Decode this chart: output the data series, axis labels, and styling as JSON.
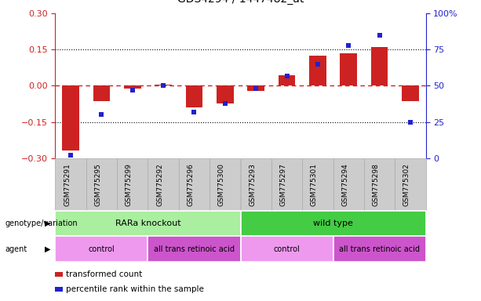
{
  "samples": [
    "GSM775291",
    "GSM775295",
    "GSM775299",
    "GSM775292",
    "GSM775296",
    "GSM775300",
    "GSM775293",
    "GSM775297",
    "GSM775301",
    "GSM775294",
    "GSM775298",
    "GSM775302"
  ],
  "bar_values": [
    -0.27,
    -0.065,
    -0.01,
    0.005,
    -0.09,
    -0.075,
    -0.02,
    0.045,
    0.125,
    0.135,
    0.16,
    -0.065
  ],
  "dot_values": [
    2,
    30,
    47,
    50,
    32,
    38,
    48,
    57,
    65,
    78,
    85,
    25
  ],
  "ylim_left": [
    -0.3,
    0.3
  ],
  "ylim_right": [
    0,
    100
  ],
  "yticks_left": [
    -0.3,
    -0.15,
    0.0,
    0.15,
    0.3
  ],
  "yticks_right": [
    0,
    25,
    50,
    75,
    100
  ],
  "bar_color": "#cc2222",
  "dot_color": "#2222cc",
  "hline_color": "#cc2222",
  "dotted_color": "#000000",
  "genotype_row": [
    {
      "label": "RARa knockout",
      "start": 0,
      "end": 5,
      "color": "#aaeea0"
    },
    {
      "label": "wild type",
      "start": 6,
      "end": 11,
      "color": "#44cc44"
    }
  ],
  "agent_row": [
    {
      "label": "control",
      "start": 0,
      "end": 2,
      "color": "#ee99ee"
    },
    {
      "label": "all trans retinoic acid",
      "start": 3,
      "end": 5,
      "color": "#cc55cc"
    },
    {
      "label": "control",
      "start": 6,
      "end": 8,
      "color": "#ee99ee"
    },
    {
      "label": "all trans retinoic acid",
      "start": 9,
      "end": 11,
      "color": "#cc55cc"
    }
  ],
  "legend_items": [
    {
      "label": "transformed count",
      "color": "#cc2222"
    },
    {
      "label": "percentile rank within the sample",
      "color": "#2222cc"
    }
  ],
  "genotype_label": "genotype/variation",
  "agent_label": "agent",
  "sample_bg_color": "#cccccc",
  "sample_border_color": "#aaaaaa"
}
